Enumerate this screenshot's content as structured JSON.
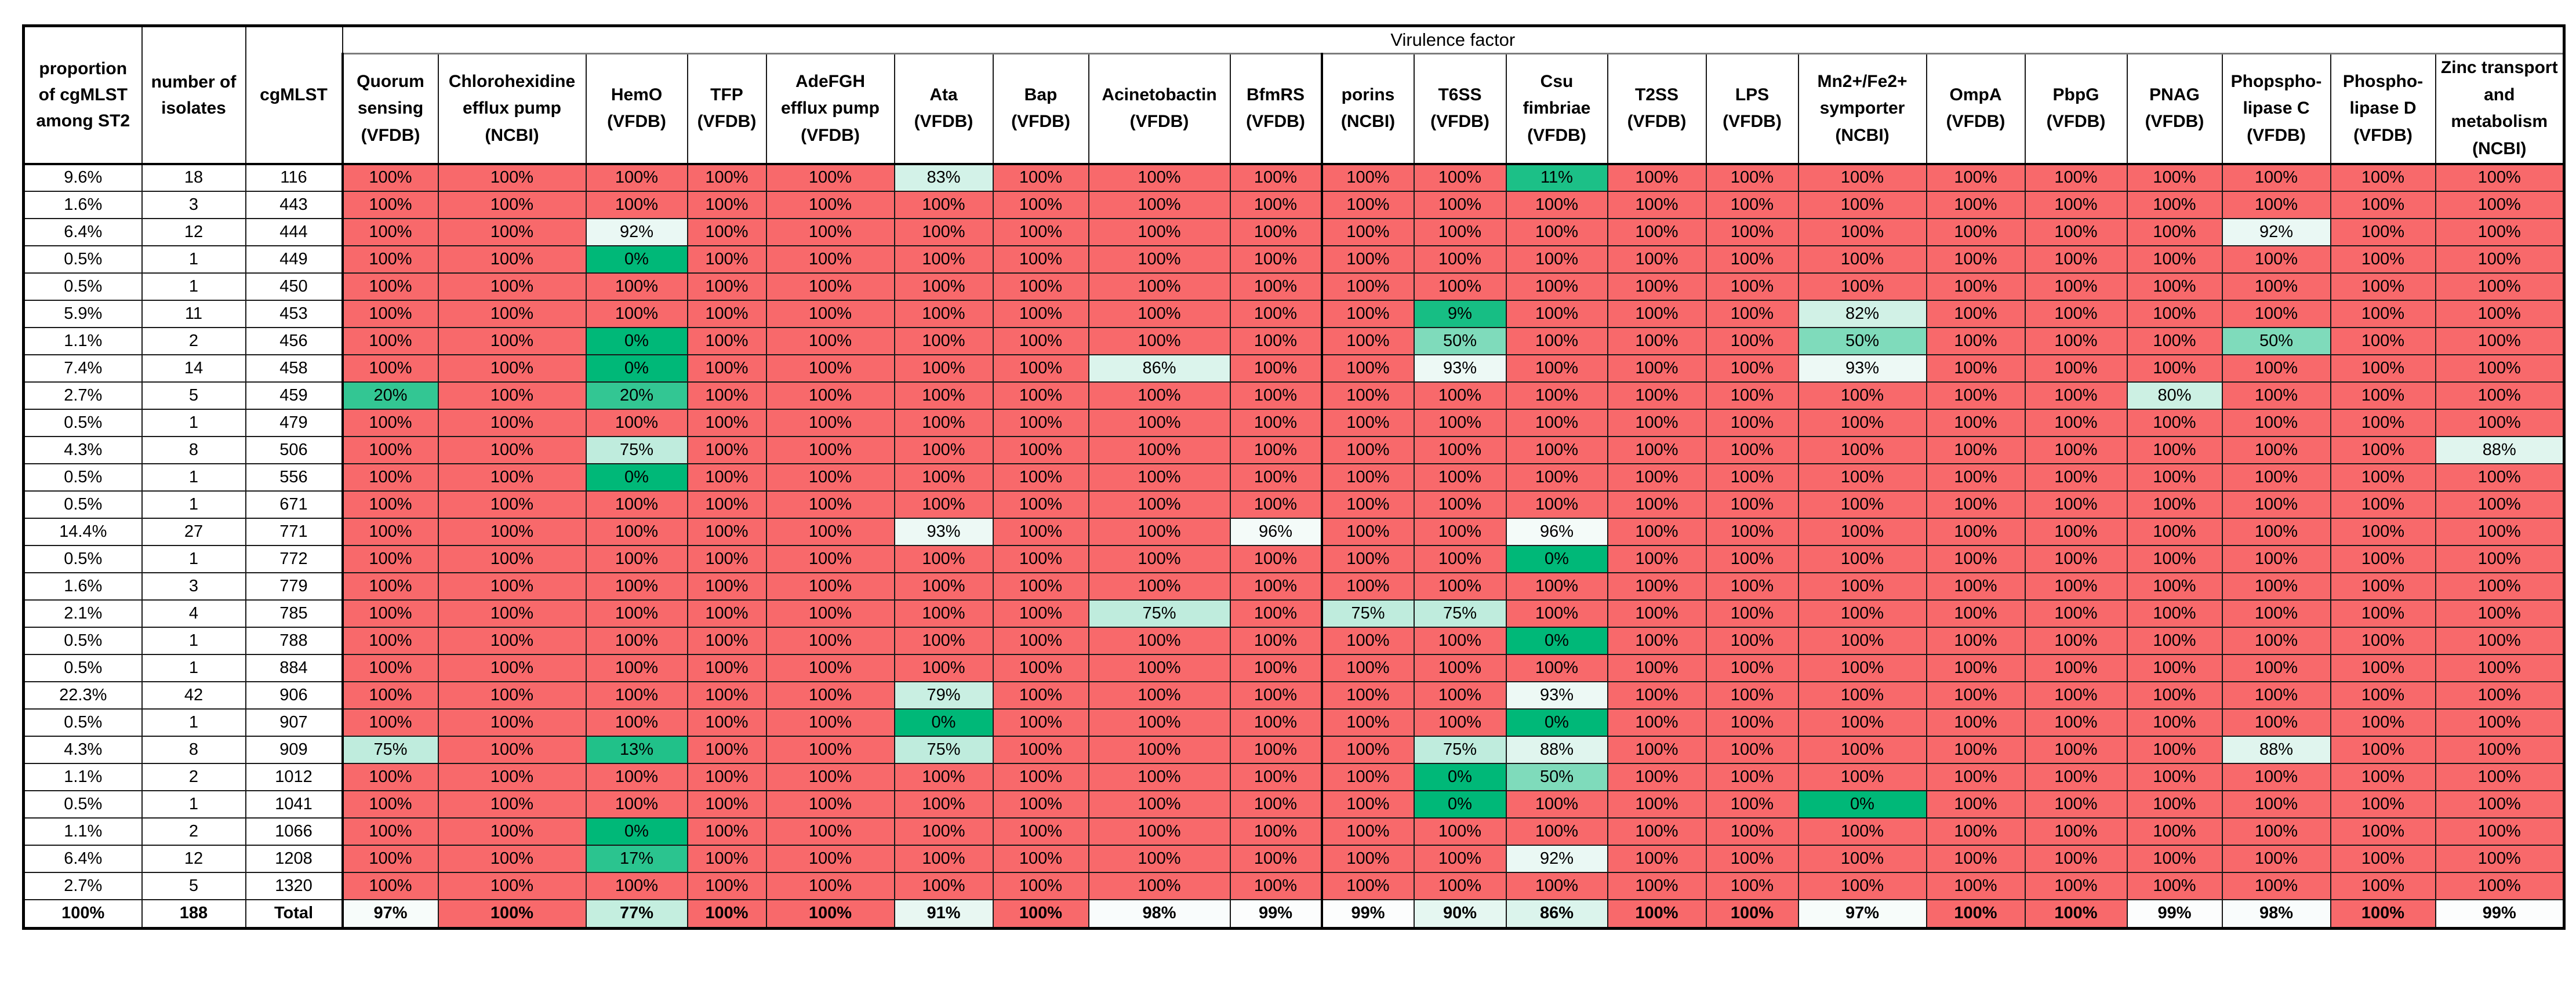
{
  "chart_data": {
    "type": "table",
    "group_header": "Virulence factor",
    "left_columns": [
      "proportion of cgMLST among ST2",
      "number of isolates",
      "cgMLST"
    ],
    "virulence_columns": [
      "Quorum sensing (VFDB)",
      "Chlorohexidine efflux pump (NCBI)",
      "HemO (VFDB)",
      "TFP (VFDB)",
      "AdeFGH efflux pump (VFDB)",
      "Ata (VFDB)",
      "Bap (VFDB)",
      "Acinetobactin (VFDB)",
      "BfmRS (VFDB)",
      "porins (NCBI)",
      "T6SS (VFDB)",
      "Csu fimbriae (VFDB)",
      "T2SS (VFDB)",
      "LPS (VFDB)",
      "Mn2+/Fe2+ symporter (NCBI)",
      "OmpA (VFDB)",
      "PbpG (VFDB)",
      "PNAG (VFDB)",
      "Phopspho-lipase C (VFDB)",
      "Phospho-lipase D (VFDB)",
      "Zinc transport and metabolism (NCBI)"
    ],
    "value_suffix": "%",
    "rows": [
      {
        "proportion": "9.6%",
        "isolates": "18",
        "cgmlst": "116",
        "values": [
          100,
          100,
          100,
          100,
          100,
          83,
          100,
          100,
          100,
          100,
          100,
          11,
          100,
          100,
          100,
          100,
          100,
          100,
          100,
          100,
          100
        ]
      },
      {
        "proportion": "1.6%",
        "isolates": "3",
        "cgmlst": "443",
        "values": [
          100,
          100,
          100,
          100,
          100,
          100,
          100,
          100,
          100,
          100,
          100,
          100,
          100,
          100,
          100,
          100,
          100,
          100,
          100,
          100,
          100
        ]
      },
      {
        "proportion": "6.4%",
        "isolates": "12",
        "cgmlst": "444",
        "values": [
          100,
          100,
          92,
          100,
          100,
          100,
          100,
          100,
          100,
          100,
          100,
          100,
          100,
          100,
          100,
          100,
          100,
          100,
          92,
          100,
          100
        ]
      },
      {
        "proportion": "0.5%",
        "isolates": "1",
        "cgmlst": "449",
        "values": [
          100,
          100,
          0,
          100,
          100,
          100,
          100,
          100,
          100,
          100,
          100,
          100,
          100,
          100,
          100,
          100,
          100,
          100,
          100,
          100,
          100
        ]
      },
      {
        "proportion": "0.5%",
        "isolates": "1",
        "cgmlst": "450",
        "values": [
          100,
          100,
          100,
          100,
          100,
          100,
          100,
          100,
          100,
          100,
          100,
          100,
          100,
          100,
          100,
          100,
          100,
          100,
          100,
          100,
          100
        ]
      },
      {
        "proportion": "5.9%",
        "isolates": "11",
        "cgmlst": "453",
        "values": [
          100,
          100,
          100,
          100,
          100,
          100,
          100,
          100,
          100,
          100,
          9,
          100,
          100,
          100,
          82,
          100,
          100,
          100,
          100,
          100,
          100
        ]
      },
      {
        "proportion": "1.1%",
        "isolates": "2",
        "cgmlst": "456",
        "values": [
          100,
          100,
          0,
          100,
          100,
          100,
          100,
          100,
          100,
          100,
          50,
          100,
          100,
          100,
          50,
          100,
          100,
          100,
          50,
          100,
          100
        ]
      },
      {
        "proportion": "7.4%",
        "isolates": "14",
        "cgmlst": "458",
        "values": [
          100,
          100,
          0,
          100,
          100,
          100,
          100,
          86,
          100,
          100,
          93,
          100,
          100,
          100,
          93,
          100,
          100,
          100,
          100,
          100,
          100
        ]
      },
      {
        "proportion": "2.7%",
        "isolates": "5",
        "cgmlst": "459",
        "values": [
          20,
          100,
          20,
          100,
          100,
          100,
          100,
          100,
          100,
          100,
          100,
          100,
          100,
          100,
          100,
          100,
          100,
          80,
          100,
          100,
          100
        ]
      },
      {
        "proportion": "0.5%",
        "isolates": "1",
        "cgmlst": "479",
        "values": [
          100,
          100,
          100,
          100,
          100,
          100,
          100,
          100,
          100,
          100,
          100,
          100,
          100,
          100,
          100,
          100,
          100,
          100,
          100,
          100,
          100
        ]
      },
      {
        "proportion": "4.3%",
        "isolates": "8",
        "cgmlst": "506",
        "values": [
          100,
          100,
          75,
          100,
          100,
          100,
          100,
          100,
          100,
          100,
          100,
          100,
          100,
          100,
          100,
          100,
          100,
          100,
          100,
          100,
          88
        ]
      },
      {
        "proportion": "0.5%",
        "isolates": "1",
        "cgmlst": "556",
        "values": [
          100,
          100,
          0,
          100,
          100,
          100,
          100,
          100,
          100,
          100,
          100,
          100,
          100,
          100,
          100,
          100,
          100,
          100,
          100,
          100,
          100
        ]
      },
      {
        "proportion": "0.5%",
        "isolates": "1",
        "cgmlst": "671",
        "values": [
          100,
          100,
          100,
          100,
          100,
          100,
          100,
          100,
          100,
          100,
          100,
          100,
          100,
          100,
          100,
          100,
          100,
          100,
          100,
          100,
          100
        ]
      },
      {
        "proportion": "14.4%",
        "isolates": "27",
        "cgmlst": "771",
        "values": [
          100,
          100,
          100,
          100,
          100,
          93,
          100,
          100,
          96,
          100,
          100,
          96,
          100,
          100,
          100,
          100,
          100,
          100,
          100,
          100,
          100
        ]
      },
      {
        "proportion": "0.5%",
        "isolates": "1",
        "cgmlst": "772",
        "values": [
          100,
          100,
          100,
          100,
          100,
          100,
          100,
          100,
          100,
          100,
          100,
          0,
          100,
          100,
          100,
          100,
          100,
          100,
          100,
          100,
          100
        ]
      },
      {
        "proportion": "1.6%",
        "isolates": "3",
        "cgmlst": "779",
        "values": [
          100,
          100,
          100,
          100,
          100,
          100,
          100,
          100,
          100,
          100,
          100,
          100,
          100,
          100,
          100,
          100,
          100,
          100,
          100,
          100,
          100
        ]
      },
      {
        "proportion": "2.1%",
        "isolates": "4",
        "cgmlst": "785",
        "values": [
          100,
          100,
          100,
          100,
          100,
          100,
          100,
          75,
          100,
          75,
          75,
          100,
          100,
          100,
          100,
          100,
          100,
          100,
          100,
          100,
          100
        ]
      },
      {
        "proportion": "0.5%",
        "isolates": "1",
        "cgmlst": "788",
        "values": [
          100,
          100,
          100,
          100,
          100,
          100,
          100,
          100,
          100,
          100,
          100,
          0,
          100,
          100,
          100,
          100,
          100,
          100,
          100,
          100,
          100
        ]
      },
      {
        "proportion": "0.5%",
        "isolates": "1",
        "cgmlst": "884",
        "values": [
          100,
          100,
          100,
          100,
          100,
          100,
          100,
          100,
          100,
          100,
          100,
          100,
          100,
          100,
          100,
          100,
          100,
          100,
          100,
          100,
          100
        ]
      },
      {
        "proportion": "22.3%",
        "isolates": "42",
        "cgmlst": "906",
        "values": [
          100,
          100,
          100,
          100,
          100,
          79,
          100,
          100,
          100,
          100,
          100,
          93,
          100,
          100,
          100,
          100,
          100,
          100,
          100,
          100,
          100
        ]
      },
      {
        "proportion": "0.5%",
        "isolates": "1",
        "cgmlst": "907",
        "values": [
          100,
          100,
          100,
          100,
          100,
          0,
          100,
          100,
          100,
          100,
          100,
          0,
          100,
          100,
          100,
          100,
          100,
          100,
          100,
          100,
          100
        ]
      },
      {
        "proportion": "4.3%",
        "isolates": "8",
        "cgmlst": "909",
        "values": [
          75,
          100,
          13,
          100,
          100,
          75,
          100,
          100,
          100,
          100,
          75,
          88,
          100,
          100,
          100,
          100,
          100,
          100,
          88,
          100,
          100
        ]
      },
      {
        "proportion": "1.1%",
        "isolates": "2",
        "cgmlst": "1012",
        "values": [
          100,
          100,
          100,
          100,
          100,
          100,
          100,
          100,
          100,
          100,
          0,
          50,
          100,
          100,
          100,
          100,
          100,
          100,
          100,
          100,
          100
        ]
      },
      {
        "proportion": "0.5%",
        "isolates": "1",
        "cgmlst": "1041",
        "values": [
          100,
          100,
          100,
          100,
          100,
          100,
          100,
          100,
          100,
          100,
          0,
          100,
          100,
          100,
          0,
          100,
          100,
          100,
          100,
          100,
          100
        ]
      },
      {
        "proportion": "1.1%",
        "isolates": "2",
        "cgmlst": "1066",
        "values": [
          100,
          100,
          0,
          100,
          100,
          100,
          100,
          100,
          100,
          100,
          100,
          100,
          100,
          100,
          100,
          100,
          100,
          100,
          100,
          100,
          100
        ]
      },
      {
        "proportion": "6.4%",
        "isolates": "12",
        "cgmlst": "1208",
        "values": [
          100,
          100,
          17,
          100,
          100,
          100,
          100,
          100,
          100,
          100,
          100,
          92,
          100,
          100,
          100,
          100,
          100,
          100,
          100,
          100,
          100
        ]
      },
      {
        "proportion": "2.7%",
        "isolates": "5",
        "cgmlst": "1320",
        "values": [
          100,
          100,
          100,
          100,
          100,
          100,
          100,
          100,
          100,
          100,
          100,
          100,
          100,
          100,
          100,
          100,
          100,
          100,
          100,
          100,
          100
        ]
      }
    ],
    "total_row": {
      "proportion": "100%",
      "isolates": "188",
      "cgmlst": "Total",
      "values": [
        97,
        100,
        77,
        100,
        100,
        91,
        100,
        98,
        99,
        99,
        90,
        86,
        100,
        100,
        97,
        100,
        100,
        99,
        98,
        100,
        99
      ]
    },
    "colors": {
      "value_100_red": "#F8696B",
      "value_0_green": "#00B878",
      "value_high_white": "#FCFDFD",
      "border_black": "#000000",
      "group_header_divider_gray": "#7C7C7C"
    }
  }
}
